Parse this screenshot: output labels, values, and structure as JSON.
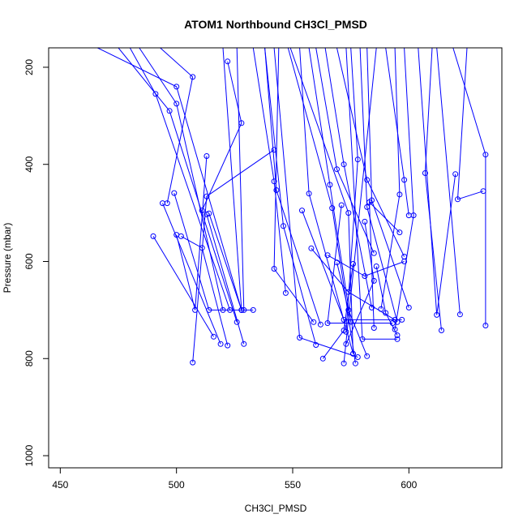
{
  "chart_data": {
    "type": "line",
    "title": "ATOM1 Northbound CH3Cl_PMSD",
    "xlabel": "CH3Cl_PMSD",
    "ylabel": "Pressure (mbar)",
    "xlim": [
      445,
      640
    ],
    "ylim": [
      1025,
      160
    ],
    "y_reversed": true,
    "grid": false,
    "x_ticks": [
      450,
      500,
      550,
      600
    ],
    "y_ticks": [
      200,
      400,
      600,
      800,
      1000
    ],
    "color": "#0000ff",
    "marker": "open-circle",
    "series": [
      {
        "points": [
          [
            466,
            160
          ],
          [
            500,
            240
          ],
          [
            528,
            700
          ]
        ]
      },
      {
        "points": [
          [
            475,
            160
          ],
          [
            497,
            290
          ],
          [
            526,
            725
          ]
        ]
      },
      {
        "points": [
          [
            480,
            160
          ],
          [
            491,
            255
          ],
          [
            523,
            700
          ]
        ]
      },
      {
        "points": [
          [
            493,
            160
          ],
          [
            507,
            220
          ],
          [
            496,
            480
          ]
        ]
      },
      {
        "points": [
          [
            484,
            160
          ],
          [
            500,
            275
          ],
          [
            520,
            700
          ]
        ]
      },
      {
        "points": [
          [
            490,
            548
          ],
          [
            516,
            755
          ]
        ]
      },
      {
        "points": [
          [
            494,
            480
          ],
          [
            519,
            770
          ]
        ]
      },
      {
        "points": [
          [
            499,
            459
          ],
          [
            514,
            700
          ],
          [
            533,
            700
          ]
        ]
      },
      {
        "points": [
          [
            507,
            808
          ],
          [
            513,
            466
          ],
          [
            542,
            370
          ]
        ]
      },
      {
        "points": [
          [
            500,
            545
          ],
          [
            508,
            700
          ],
          [
            513,
            383
          ]
        ]
      },
      {
        "points": [
          [
            502,
            548
          ],
          [
            511,
            572
          ],
          [
            522,
            773
          ]
        ]
      },
      {
        "points": [
          [
            513,
            503
          ],
          [
            529,
            770
          ]
        ]
      },
      {
        "points": [
          [
            511,
            495
          ],
          [
            528,
            315
          ],
          [
            522,
            188
          ]
        ]
      },
      {
        "points": [
          [
            514,
            501
          ],
          [
            528,
            700
          ]
        ]
      },
      {
        "points": [
          [
            520,
            160
          ],
          [
            528,
            700
          ]
        ]
      },
      {
        "points": [
          [
            526,
            160
          ],
          [
            529,
            700
          ]
        ]
      },
      {
        "points": [
          [
            533,
            160
          ],
          [
            542,
            435
          ],
          [
            547,
            665
          ]
        ]
      },
      {
        "points": [
          [
            538,
            160
          ],
          [
            546,
            527
          ],
          [
            560,
            772
          ]
        ]
      },
      {
        "points": [
          [
            542,
            160
          ],
          [
            553,
            757
          ],
          [
            578,
            797
          ]
        ]
      },
      {
        "points": [
          [
            544,
            160
          ],
          [
            542,
            615
          ],
          [
            559,
            725
          ]
        ]
      },
      {
        "points": [
          [
            538,
            160
          ],
          [
            543,
            453
          ],
          [
            562,
            730
          ]
        ]
      },
      {
        "points": [
          [
            548,
            160
          ],
          [
            567,
            490
          ],
          [
            577,
            810
          ]
        ]
      },
      {
        "points": [
          [
            553,
            160
          ],
          [
            557,
            460
          ],
          [
            576,
            790
          ]
        ]
      },
      {
        "points": [
          [
            557,
            160
          ],
          [
            566,
            442
          ],
          [
            575,
            725
          ]
        ]
      },
      {
        "points": [
          [
            560,
            160
          ],
          [
            569,
            410
          ],
          [
            585,
            583
          ]
        ]
      },
      {
        "points": [
          [
            564,
            160
          ],
          [
            572,
            400
          ],
          [
            584,
            695
          ]
        ]
      },
      {
        "points": [
          [
            569,
            160
          ],
          [
            582,
            432
          ],
          [
            598,
            590
          ]
        ]
      },
      {
        "points": [
          [
            573,
            160
          ],
          [
            580,
            760
          ],
          [
            595,
            760
          ]
        ]
      },
      {
        "points": [
          [
            575,
            160
          ],
          [
            578,
            390
          ],
          [
            573,
            745
          ]
        ]
      },
      {
        "points": [
          [
            579,
            160
          ],
          [
            582,
            488
          ],
          [
            595,
            725
          ]
        ]
      },
      {
        "points": [
          [
            582,
            160
          ],
          [
            584,
            474
          ],
          [
            600,
            695
          ]
        ]
      },
      {
        "points": [
          [
            586,
            160
          ],
          [
            572,
            810
          ]
        ]
      },
      {
        "points": [
          [
            590,
            160
          ],
          [
            598,
            432
          ],
          [
            600,
            505
          ]
        ]
      },
      {
        "points": [
          [
            594,
            160
          ],
          [
            596,
            462
          ],
          [
            588,
            698
          ]
        ]
      },
      {
        "points": [
          [
            598,
            160
          ],
          [
            602,
            505
          ],
          [
            594,
            740
          ]
        ]
      },
      {
        "points": [
          [
            604,
            160
          ],
          [
            612,
            710
          ],
          [
            620,
            420
          ]
        ]
      },
      {
        "points": [
          [
            610,
            160
          ],
          [
            607,
            418
          ],
          [
            614,
            742
          ]
        ]
      },
      {
        "points": [
          [
            619,
            160
          ],
          [
            633,
            380
          ],
          [
            633,
            732
          ]
        ]
      },
      {
        "points": [
          [
            625,
            160
          ],
          [
            621,
            472
          ],
          [
            632,
            455
          ]
        ]
      },
      {
        "points": [
          [
            549,
            160
          ],
          [
            574,
            500
          ],
          [
            576,
            790
          ]
        ]
      },
      {
        "points": [
          [
            554,
            495
          ],
          [
            572,
            720
          ],
          [
            597,
            720
          ]
        ]
      },
      {
        "points": [
          [
            565,
            587
          ],
          [
            581,
            630
          ],
          [
            598,
            600
          ]
        ]
      },
      {
        "points": [
          [
            558,
            573
          ],
          [
            574,
            663
          ],
          [
            594,
            720
          ]
        ]
      },
      {
        "points": [
          [
            576,
            605
          ],
          [
            572,
            742
          ],
          [
            563,
            800
          ]
        ]
      },
      {
        "points": [
          [
            581,
            518
          ],
          [
            585,
            640
          ],
          [
            573,
            770
          ]
        ]
      },
      {
        "points": [
          [
            569,
            602
          ],
          [
            574,
            700
          ],
          [
            582,
            795
          ]
        ]
      },
      {
        "points": [
          [
            586,
            610
          ],
          [
            590,
            706
          ],
          [
            595,
            752
          ]
        ]
      },
      {
        "points": [
          [
            585,
            737
          ],
          [
            583,
            478
          ],
          [
            596,
            540
          ]
        ]
      },
      {
        "points": [
          [
            622,
            709
          ],
          [
            612,
            160
          ]
        ]
      },
      {
        "points": [
          [
            571,
            484
          ],
          [
            565,
            727
          ],
          [
            593,
            727
          ]
        ]
      }
    ]
  }
}
